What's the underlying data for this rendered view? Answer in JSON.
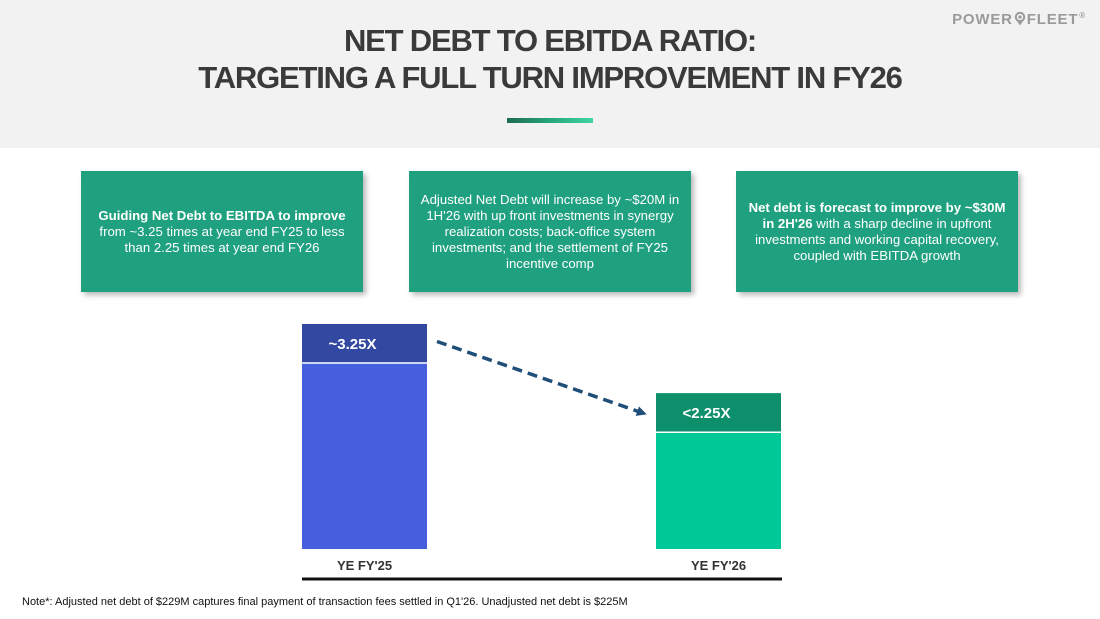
{
  "header": {
    "title_line1": "NET DEBT TO EBITDA RATIO:",
    "title_line2": "TARGETING A FULL TURN IMPROVEMENT IN FY26",
    "logo_text_left": "POWER",
    "logo_text_right": "FLEET",
    "logo_reg": "®"
  },
  "cards": [
    {
      "bold": "Guiding Net Debt to EBITDA to improve",
      "text": " from ~3.25 times at year end FY25 to less than 2.25 times at year end FY26"
    },
    {
      "bold": "",
      "text": "Adjusted Net Debt will increase by ~$20M in 1H'26 with up front investments in synergy realization costs; back-office system investments; and the settlement of FY25 incentive comp"
    },
    {
      "bold": "Net debt is forecast to improve by ~$30M in 2H'26",
      "text": " with a sharp decline in upfront investments and working capital recovery, coupled with EBITDA growth"
    }
  ],
  "chart_data": {
    "type": "bar",
    "categories": [
      "YE FY'25",
      "YE FY'26"
    ],
    "values": [
      3.25,
      2.25
    ],
    "data_labels": [
      "~3.25X",
      "<2.25X"
    ],
    "ylim": [
      0,
      3.25
    ],
    "colors": {
      "bar": [
        "#465fdc",
        "#00c896"
      ],
      "label_band": [
        "#3348a0",
        "#0d8f6c"
      ],
      "arrow": "#1f4e79"
    },
    "grid": false
  },
  "footnote": "Note*: Adjusted net debt of $229M captures final payment of transaction fees settled in Q1'26.  Unadjusted net debt is $225M"
}
